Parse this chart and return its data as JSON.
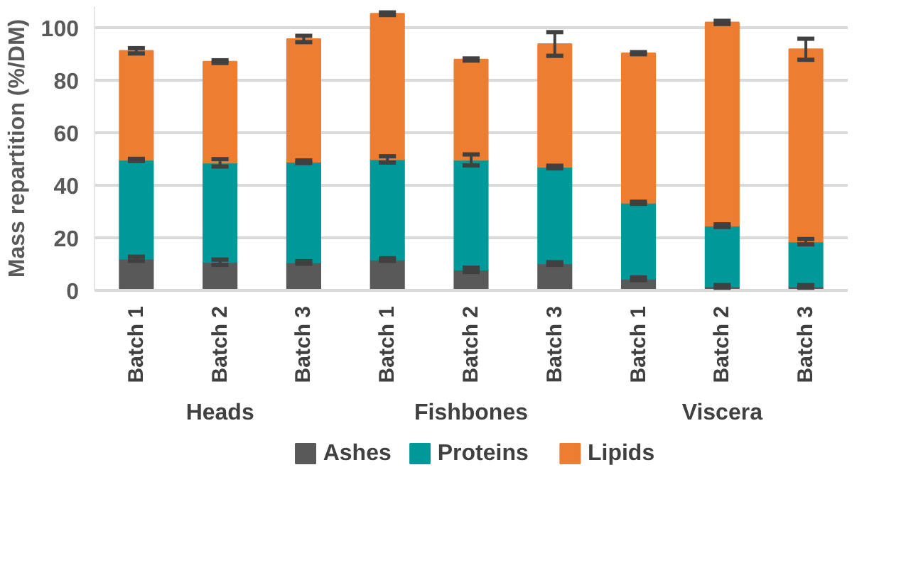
{
  "chart_data": {
    "type": "bar",
    "stacked": true,
    "ylabel": "Mass repartition (%/DM)",
    "categories": [
      "Batch 1",
      "Batch 2",
      "Batch 3",
      "Batch 1",
      "Batch 2",
      "Batch 3",
      "Batch 1",
      "Batch 2",
      "Batch 3"
    ],
    "annotations": [
      "Heads",
      "Fishbones",
      "Viscera"
    ],
    "series": [
      {
        "name": "Ashes",
        "color": "#595959",
        "values": [
          12,
          10.7,
          10.6,
          11.7,
          7.8,
          10.2,
          4.4,
          1.5,
          1.5
        ],
        "errors": [
          0.8,
          1,
          0.5,
          0.5,
          0.8,
          0.5,
          0.5,
          0.5,
          0.5
        ]
      },
      {
        "name": "Proteins",
        "color": "#009999",
        "values": [
          37.6,
          37.8,
          38.3,
          38.1,
          41.8,
          36.7,
          28.9,
          23.1,
          17
        ],
        "errors": [
          0.4,
          1.4,
          0.5,
          1.2,
          2.1,
          0.5,
          0.4,
          0.5,
          1
        ]
      },
      {
        "name": "Lipids",
        "color": "#ed7d31",
        "values": [
          41.5,
          38.5,
          46.7,
          55.4,
          38.2,
          46.8,
          56.9,
          77.3,
          73.2
        ],
        "errors": [
          1,
          0.5,
          1.2,
          0.5,
          0.4,
          4.5,
          0.4,
          0.6,
          4
        ]
      }
    ],
    "ylim": [
      0,
      108
    ],
    "yticks": [
      0,
      20,
      40,
      60,
      80,
      100
    ],
    "grid": "y",
    "legend": "bottom"
  }
}
